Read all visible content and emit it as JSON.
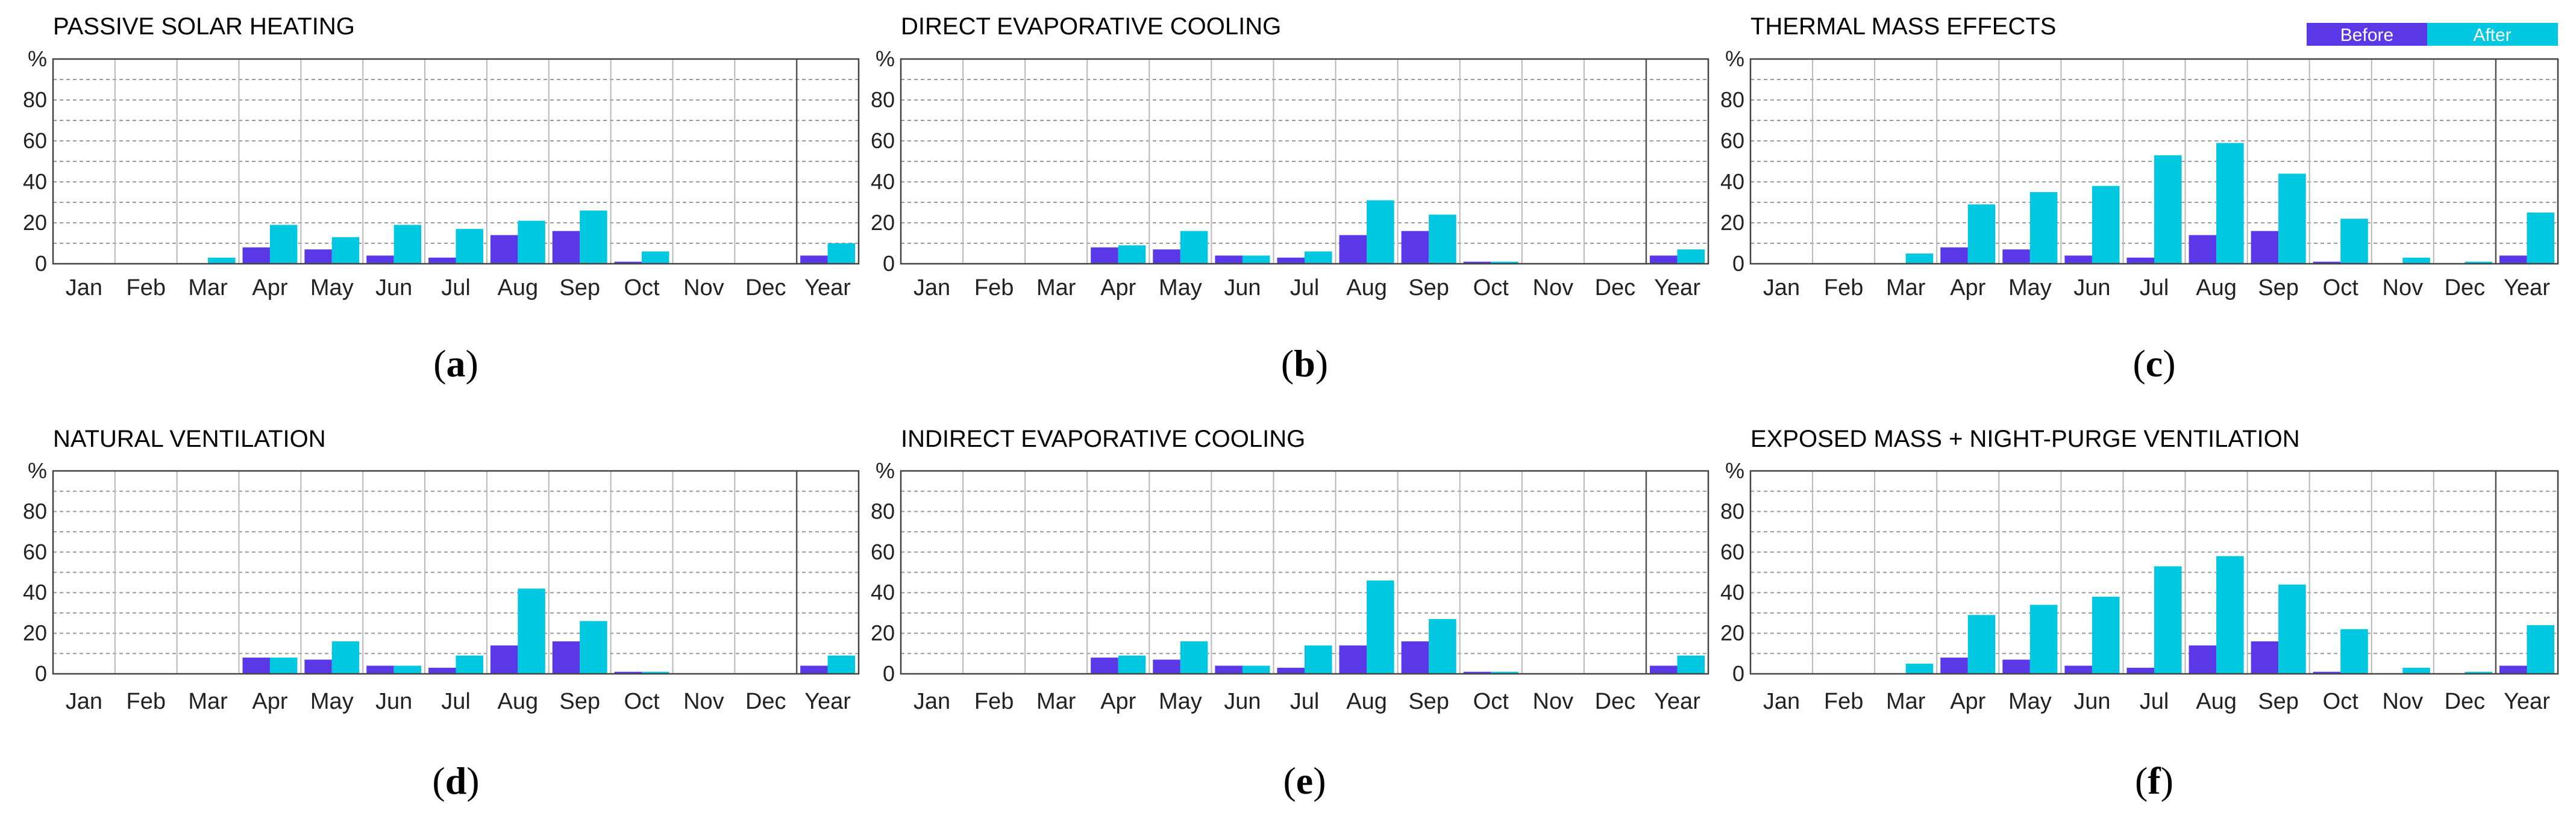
{
  "colors": {
    "before": "#5a38e8",
    "after": "#00c8e0"
  },
  "legend": {
    "before_label": "Before",
    "after_label": "After"
  },
  "y_axis": {
    "unit_label": "%",
    "ticks": [
      0,
      20,
      40,
      60,
      80
    ]
  },
  "chart_data": [
    {
      "type": "bar",
      "id": "a",
      "title": "PASSIVE SOLAR HEATING",
      "caption": "a",
      "categories": [
        "Jan",
        "Feb",
        "Mar",
        "Apr",
        "May",
        "Jun",
        "Jul",
        "Aug",
        "Sep",
        "Oct",
        "Nov",
        "Dec",
        "Year"
      ],
      "ylabel": "%",
      "ylim": [
        0,
        100
      ],
      "series": [
        {
          "name": "Before",
          "values": [
            0,
            0,
            0,
            8,
            7,
            4,
            3,
            14,
            16,
            1,
            0,
            0,
            4
          ]
        },
        {
          "name": "After",
          "values": [
            0,
            0,
            3,
            19,
            13,
            19,
            17,
            21,
            26,
            6,
            0,
            0,
            10
          ]
        }
      ]
    },
    {
      "type": "bar",
      "id": "b",
      "title": "DIRECT EVAPORATIVE COOLING",
      "caption": "b",
      "categories": [
        "Jan",
        "Feb",
        "Mar",
        "Apr",
        "May",
        "Jun",
        "Jul",
        "Aug",
        "Sep",
        "Oct",
        "Nov",
        "Dec",
        "Year"
      ],
      "ylabel": "%",
      "ylim": [
        0,
        100
      ],
      "series": [
        {
          "name": "Before",
          "values": [
            0,
            0,
            0,
            8,
            7,
            4,
            3,
            14,
            16,
            1,
            0,
            0,
            4
          ]
        },
        {
          "name": "After",
          "values": [
            0,
            0,
            0,
            9,
            16,
            4,
            6,
            31,
            24,
            1,
            0,
            0,
            7
          ]
        }
      ]
    },
    {
      "type": "bar",
      "id": "c",
      "title": "THERMAL MASS EFFECTS",
      "caption": "c",
      "categories": [
        "Jan",
        "Feb",
        "Mar",
        "Apr",
        "May",
        "Jun",
        "Jul",
        "Aug",
        "Sep",
        "Oct",
        "Nov",
        "Dec",
        "Year"
      ],
      "ylabel": "%",
      "ylim": [
        0,
        100
      ],
      "series": [
        {
          "name": "Before",
          "values": [
            0,
            0,
            0,
            8,
            7,
            4,
            3,
            14,
            16,
            1,
            0,
            0,
            4
          ]
        },
        {
          "name": "After",
          "values": [
            0,
            0,
            5,
            29,
            35,
            38,
            53,
            59,
            44,
            22,
            3,
            1,
            25
          ]
        }
      ]
    },
    {
      "type": "bar",
      "id": "d",
      "title": "NATURAL VENTILATION",
      "caption": "d",
      "categories": [
        "Jan",
        "Feb",
        "Mar",
        "Apr",
        "May",
        "Jun",
        "Jul",
        "Aug",
        "Sep",
        "Oct",
        "Nov",
        "Dec",
        "Year"
      ],
      "ylabel": "%",
      "ylim": [
        0,
        100
      ],
      "series": [
        {
          "name": "Before",
          "values": [
            0,
            0,
            0,
            8,
            7,
            4,
            3,
            14,
            16,
            1,
            0,
            0,
            4
          ]
        },
        {
          "name": "After",
          "values": [
            0,
            0,
            0,
            8,
            16,
            4,
            9,
            42,
            26,
            1,
            0,
            0,
            9
          ]
        }
      ]
    },
    {
      "type": "bar",
      "id": "e",
      "title": "INDIRECT EVAPORATIVE COOLING",
      "caption": "e",
      "categories": [
        "Jan",
        "Feb",
        "Mar",
        "Apr",
        "May",
        "Jun",
        "Jul",
        "Aug",
        "Sep",
        "Oct",
        "Nov",
        "Dec",
        "Year"
      ],
      "ylabel": "%",
      "ylim": [
        0,
        100
      ],
      "series": [
        {
          "name": "Before",
          "values": [
            0,
            0,
            0,
            8,
            7,
            4,
            3,
            14,
            16,
            1,
            0,
            0,
            4
          ]
        },
        {
          "name": "After",
          "values": [
            0,
            0,
            0,
            9,
            16,
            4,
            14,
            46,
            27,
            1,
            0,
            0,
            9
          ]
        }
      ]
    },
    {
      "type": "bar",
      "id": "f",
      "title": "EXPOSED MASS + NIGHT-PURGE VENTILATION",
      "caption": "f",
      "categories": [
        "Jan",
        "Feb",
        "Mar",
        "Apr",
        "May",
        "Jun",
        "Jul",
        "Aug",
        "Sep",
        "Oct",
        "Nov",
        "Dec",
        "Year"
      ],
      "ylabel": "%",
      "ylim": [
        0,
        100
      ],
      "series": [
        {
          "name": "Before",
          "values": [
            0,
            0,
            0,
            8,
            7,
            4,
            3,
            14,
            16,
            1,
            0,
            0,
            4
          ]
        },
        {
          "name": "After",
          "values": [
            0,
            0,
            5,
            29,
            34,
            38,
            53,
            58,
            44,
            22,
            3,
            1,
            24
          ]
        }
      ]
    }
  ]
}
